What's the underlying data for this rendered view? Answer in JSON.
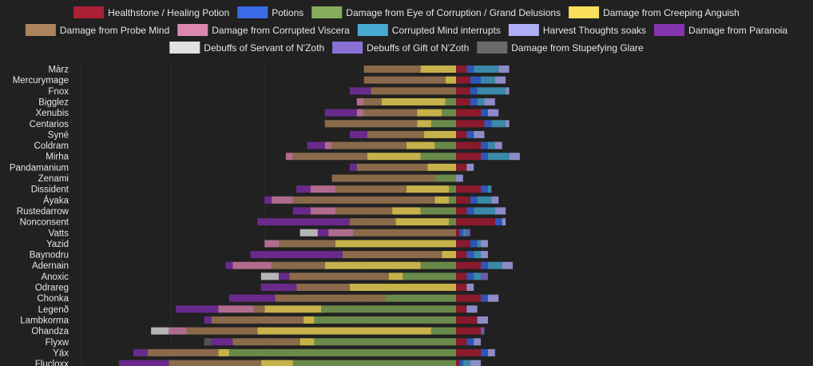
{
  "chart_data": {
    "type": "bar",
    "orientation": "horizontal-diverging",
    "grid": true,
    "legend_placement": "top",
    "categories": [
      "Màrz",
      "Mercurymage",
      "Fnox",
      "Bigglez",
      "Xenubis",
      "Centarios",
      "Syné",
      "Coldram",
      "Mirha",
      "Pandamanium",
      "Zenami",
      "Dissident",
      "Áyaka",
      "Rustedarrow",
      "Nonconsent",
      "Vatts",
      "Yazid",
      "Baynodru",
      "Adernain",
      "Anoxic",
      "Odrareg",
      "Chonka",
      "Legenð",
      "Lambkorma",
      "Ohandza",
      "Flyxw",
      "Yäx",
      "Flucloxx"
    ],
    "positive_series": [
      {
        "name": "Healthstone / Healing Potion",
        "color": "#8a1a2c",
        "values": [
          3,
          4,
          4,
          4,
          7,
          8,
          3,
          7,
          7,
          3,
          0,
          7,
          4,
          3,
          11,
          1,
          4,
          3,
          7,
          3,
          3,
          7,
          3,
          6,
          7,
          3,
          7,
          1
        ]
      },
      {
        "name": "Potions",
        "color": "#2f55b8",
        "values": [
          2,
          3,
          2,
          2,
          2,
          2,
          2,
          2,
          2,
          0,
          0,
          2,
          2,
          2,
          2,
          1,
          2,
          2,
          2,
          2,
          0,
          2,
          0,
          0,
          0,
          2,
          2,
          1
        ]
      },
      {
        "name": "Corrupted Mind interrupts",
        "color": "#3a89a8",
        "values": [
          7,
          4,
          8,
          2,
          0,
          4,
          0,
          2,
          6,
          0,
          0,
          1,
          4,
          6,
          0,
          1,
          1,
          2,
          4,
          2,
          0,
          0,
          0,
          0,
          0,
          0,
          0,
          2
        ]
      },
      {
        "name": "Harvest Thoughts soaks",
        "color": "#8c8cc8",
        "values": [
          3,
          3,
          1,
          3,
          3,
          1,
          3,
          2,
          3,
          2,
          2,
          0,
          2,
          3,
          1,
          0,
          2,
          2,
          3,
          0,
          2,
          3,
          3,
          3,
          0,
          2,
          2,
          3
        ]
      },
      {
        "name": "Debuffs of Gift of N'Zoth",
        "color": "#6e5aaa",
        "values": [
          0,
          0,
          0,
          0,
          0,
          0,
          0,
          0,
          0,
          0,
          0,
          0,
          0,
          0,
          0,
          1,
          0,
          0,
          0,
          2,
          0,
          0,
          0,
          0,
          1,
          0,
          0,
          0
        ]
      }
    ],
    "negative_series": [
      {
        "name": "Damage from Eye of Corruption / Grand Delusions",
        "color": "#6a8a4a",
        "values": [
          0,
          0,
          0,
          3,
          4,
          7,
          0,
          6,
          10,
          0,
          6,
          2,
          2,
          10,
          2,
          0,
          0,
          0,
          10,
          15,
          0,
          20,
          38,
          40,
          7,
          40,
          64,
          46
        ]
      },
      {
        "name": "Damage from Creeping Anguish",
        "color": "#c6b24a",
        "values": [
          10,
          3,
          0,
          18,
          7,
          4,
          9,
          8,
          15,
          8,
          0,
          12,
          4,
          8,
          15,
          0,
          34,
          4,
          27,
          4,
          30,
          0,
          16,
          3,
          49,
          4,
          3,
          9
        ]
      },
      {
        "name": "Damage from Probe Mind",
        "color": "#8a6a4a",
        "values": [
          16,
          23,
          24,
          5,
          15,
          26,
          16,
          21,
          21,
          20,
          29,
          20,
          40,
          16,
          13,
          29,
          16,
          28,
          15,
          28,
          15,
          31,
          3,
          26,
          20,
          19,
          20,
          26
        ]
      },
      {
        "name": "Damage from Corrupted Viscera",
        "color": "#b06c8c",
        "values": [
          0,
          0,
          0,
          2,
          2,
          0,
          0,
          2,
          2,
          0,
          0,
          7,
          6,
          7,
          0,
          7,
          4,
          0,
          11,
          0,
          0,
          0,
          10,
          0,
          5,
          0,
          0,
          0
        ]
      },
      {
        "name": "Damage from Paranoia",
        "color": "#6a2a8c",
        "values": [
          0,
          0,
          6,
          0,
          9,
          0,
          5,
          5,
          0,
          2,
          0,
          4,
          2,
          5,
          26,
          3,
          0,
          26,
          2,
          3,
          10,
          13,
          12,
          2,
          0,
          6,
          4,
          14
        ]
      },
      {
        "name": "Debuffs of Servant of N'Zoth",
        "color": "#b5b5b5",
        "values": [
          0,
          0,
          0,
          0,
          0,
          0,
          0,
          0,
          0,
          0,
          0,
          0,
          0,
          0,
          0,
          5,
          0,
          0,
          0,
          5,
          0,
          0,
          0,
          0,
          5,
          0,
          0,
          0
        ]
      },
      {
        "name": "Damage from Stupefying Glare",
        "color": "#555555",
        "values": [
          0,
          0,
          0,
          0,
          0,
          0,
          0,
          0,
          0,
          0,
          0,
          0,
          0,
          0,
          0,
          0,
          0,
          0,
          0,
          0,
          0,
          0,
          0,
          0,
          0,
          2,
          0,
          0
        ]
      }
    ]
  }
}
